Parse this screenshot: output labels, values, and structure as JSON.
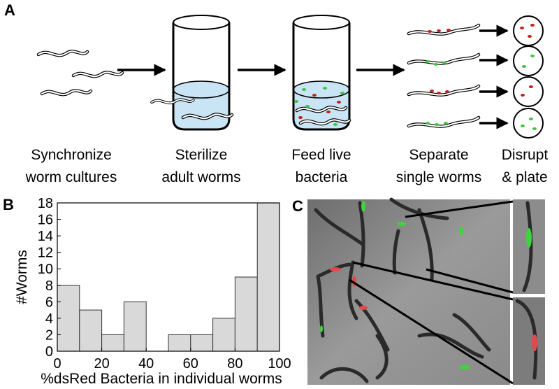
{
  "panel_labels": [
    "A",
    "B",
    "C"
  ],
  "steps": [
    [
      "Synchronize",
      "worm cultures"
    ],
    [
      "Sterilize",
      "adult worms"
    ],
    [
      "Feed live",
      "bacteria"
    ],
    [
      "Separate",
      "single worms"
    ],
    [
      "Disrupt",
      "& plate"
    ]
  ],
  "chart_data": {
    "type": "histogram",
    "bins": [
      0,
      10,
      20,
      30,
      40,
      50,
      60,
      70,
      80,
      90,
      100
    ],
    "values": [
      8,
      5,
      2,
      6,
      0,
      2,
      2,
      4,
      9,
      18
    ],
    "color": "#d9d9d9",
    "x_label": "%dsRed Bacteria in individual worms",
    "y_label": "#Worms",
    "xlim": [
      0,
      100
    ],
    "xticks": [
      0,
      20,
      40,
      60,
      80,
      100
    ],
    "ylim": [
      0,
      18
    ],
    "yticks": [
      0,
      2,
      4,
      6,
      8,
      10,
      12,
      14,
      16,
      18
    ]
  }
}
